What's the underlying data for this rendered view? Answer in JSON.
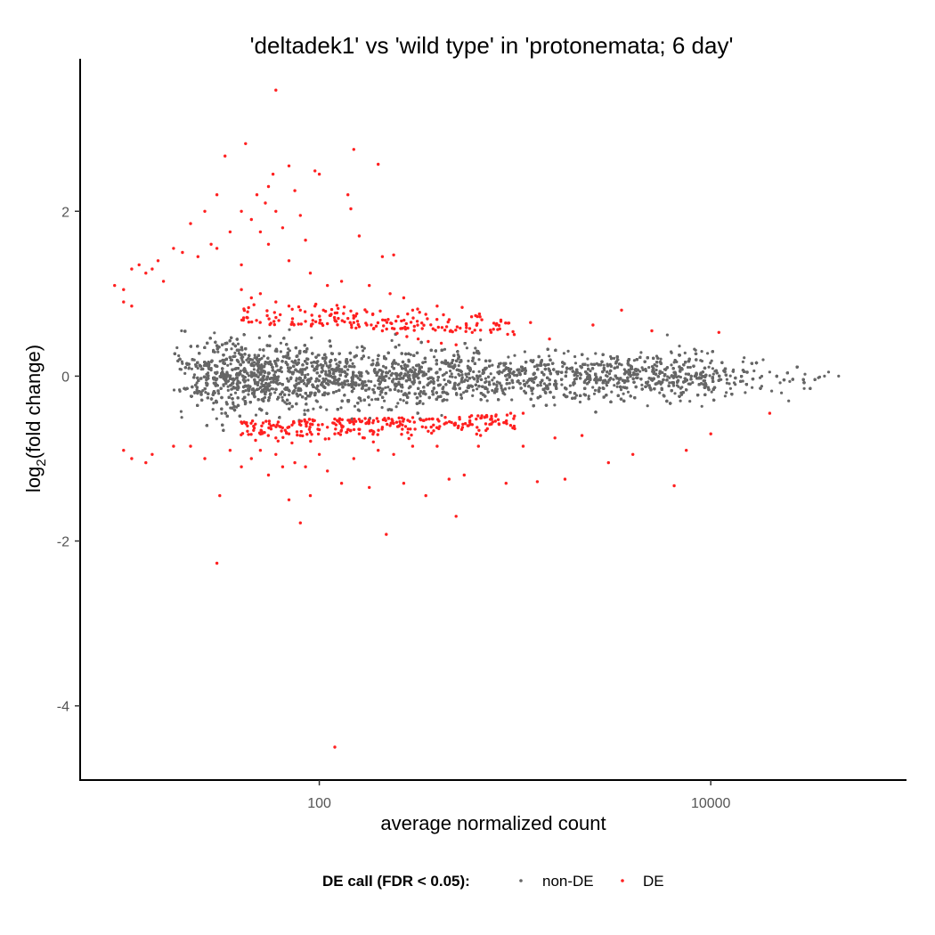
{
  "chart_data": {
    "type": "scatter",
    "title": "'deltadek1' vs 'wild type' in 'protonemata; 6 day'",
    "xlabel": "average normalized count",
    "ylabel_main": "log",
    "ylabel_sub": "2",
    "ylabel_rest": "(fold change)",
    "x_scale": "log10",
    "xlim": [
      6,
      100000
    ],
    "ylim": [
      -4.9,
      3.85
    ],
    "x_ticks": [
      {
        "value": 100,
        "label": "100"
      },
      {
        "value": 10000,
        "label": "10000"
      }
    ],
    "y_ticks": [
      {
        "value": 2,
        "label": "2"
      },
      {
        "value": 0,
        "label": "0"
      },
      {
        "value": -2,
        "label": "-2"
      },
      {
        "value": -4,
        "label": "-4"
      }
    ],
    "grid": false,
    "legend": {
      "title": "DE call (FDR < 0.05):",
      "position": "bottom",
      "entries": [
        "non-DE",
        "DE"
      ]
    },
    "colors": {
      "non_de": "#666666",
      "de": "#ff2020"
    },
    "series": [
      {
        "name": "non-DE",
        "description": "dense cloud of ~20000 genes centred on 0; band roughly ±0.7 at low counts narrowing to ±0.3 at high counts",
        "points": [
          [
            20000,
            0.05
          ],
          [
            25000,
            -0.3
          ],
          [
            30000,
            -0.15
          ],
          [
            40000,
            0.05
          ],
          [
            45000,
            0.0
          ],
          [
            9000,
            0.3
          ],
          [
            12000,
            -0.2
          ],
          [
            15000,
            -0.2
          ],
          [
            6000,
            0.5
          ],
          [
            7000,
            -0.3
          ]
        ]
      },
      {
        "name": "DE",
        "points": [
          [
            60,
            3.47
          ],
          [
            42,
            2.82
          ],
          [
            33,
            2.67
          ],
          [
            70,
            2.55
          ],
          [
            150,
            2.75
          ],
          [
            200,
            2.57
          ],
          [
            95,
            2.49
          ],
          [
            100,
            2.45
          ],
          [
            140,
            2.2
          ],
          [
            145,
            2.03
          ],
          [
            58,
            2.45
          ],
          [
            55,
            2.3
          ],
          [
            48,
            2.2
          ],
          [
            53,
            2.1
          ],
          [
            30,
            2.2
          ],
          [
            26,
            2.0
          ],
          [
            22,
            1.85
          ],
          [
            40,
            2.0
          ],
          [
            45,
            1.9
          ],
          [
            60,
            2.0
          ],
          [
            75,
            2.25
          ],
          [
            80,
            1.95
          ],
          [
            35,
            1.75
          ],
          [
            50,
            1.75
          ],
          [
            65,
            1.8
          ],
          [
            85,
            1.65
          ],
          [
            160,
            1.7
          ],
          [
            210,
            1.45
          ],
          [
            240,
            1.47
          ],
          [
            28,
            1.6
          ],
          [
            20,
            1.5
          ],
          [
            18,
            1.55
          ],
          [
            15,
            1.4
          ],
          [
            14,
            1.3
          ],
          [
            13,
            1.25
          ],
          [
            12,
            1.35
          ],
          [
            11,
            1.3
          ],
          [
            10,
            1.05
          ],
          [
            9,
            1.1
          ],
          [
            10,
            0.9
          ],
          [
            11,
            0.85
          ],
          [
            16,
            1.15
          ],
          [
            24,
            1.45
          ],
          [
            30,
            1.55
          ],
          [
            40,
            1.35
          ],
          [
            55,
            1.6
          ],
          [
            70,
            1.4
          ],
          [
            90,
            1.25
          ],
          [
            110,
            1.1
          ],
          [
            130,
            1.15
          ],
          [
            180,
            1.1
          ],
          [
            230,
            1.0
          ],
          [
            270,
            0.95
          ],
          [
            300,
            0.8
          ],
          [
            350,
            0.75
          ],
          [
            400,
            0.85
          ],
          [
            600,
            0.72
          ],
          [
            800,
            0.62
          ],
          [
            1200,
            0.65
          ],
          [
            2500,
            0.62
          ],
          [
            3500,
            0.8
          ],
          [
            5000,
            0.55
          ],
          [
            11000,
            0.53
          ],
          [
            1500,
            0.45
          ],
          [
            40,
            1.05
          ],
          [
            45,
            0.95
          ],
          [
            50,
            1.0
          ],
          [
            60,
            0.9
          ],
          [
            70,
            0.85
          ],
          [
            80,
            0.8
          ],
          [
            95,
            0.85
          ],
          [
            105,
            0.8
          ],
          [
            115,
            0.75
          ],
          [
            125,
            0.7
          ],
          [
            140,
            0.7
          ],
          [
            150,
            0.65
          ],
          [
            160,
            0.6
          ],
          [
            175,
            0.62
          ],
          [
            190,
            0.58
          ],
          [
            210,
            0.55
          ],
          [
            250,
            0.52
          ],
          [
            280,
            0.48
          ],
          [
            320,
            0.45
          ],
          [
            360,
            0.42
          ],
          [
            420,
            0.4
          ],
          [
            500,
            0.38
          ],
          [
            120,
            -4.5
          ],
          [
            30,
            -2.27
          ],
          [
            80,
            -1.78
          ],
          [
            220,
            -1.92
          ],
          [
            500,
            -1.7
          ],
          [
            31,
            -1.45
          ],
          [
            70,
            -1.5
          ],
          [
            90,
            -1.45
          ],
          [
            130,
            -1.3
          ],
          [
            180,
            -1.35
          ],
          [
            270,
            -1.3
          ],
          [
            350,
            -1.45
          ],
          [
            460,
            -1.25
          ],
          [
            550,
            -1.2
          ],
          [
            900,
            -1.3
          ],
          [
            1300,
            -1.28
          ],
          [
            1800,
            -1.25
          ],
          [
            3000,
            -1.05
          ],
          [
            4000,
            -0.95
          ],
          [
            6500,
            -1.33
          ],
          [
            7500,
            -0.9
          ],
          [
            20000,
            -0.45
          ],
          [
            10000,
            -0.7
          ],
          [
            10,
            -0.9
          ],
          [
            11,
            -1.0
          ],
          [
            13,
            -1.05
          ],
          [
            14,
            -0.95
          ],
          [
            18,
            -0.85
          ],
          [
            22,
            -0.85
          ],
          [
            26,
            -1.0
          ],
          [
            35,
            -0.9
          ],
          [
            40,
            -1.1
          ],
          [
            45,
            -1.0
          ],
          [
            50,
            -0.9
          ],
          [
            55,
            -1.2
          ],
          [
            60,
            -0.95
          ],
          [
            65,
            -1.1
          ],
          [
            75,
            -1.05
          ],
          [
            85,
            -1.1
          ],
          [
            100,
            -0.95
          ],
          [
            110,
            -1.15
          ],
          [
            150,
            -1.0
          ],
          [
            200,
            -0.9
          ],
          [
            240,
            -0.95
          ],
          [
            300,
            -0.85
          ],
          [
            400,
            -0.85
          ],
          [
            650,
            -0.85
          ],
          [
            1100,
            -0.85
          ],
          [
            1600,
            -0.75
          ],
          [
            2200,
            -0.72
          ],
          [
            120,
            -0.7
          ],
          [
            140,
            -0.65
          ],
          [
            160,
            -0.7
          ],
          [
            170,
            -0.75
          ],
          [
            190,
            -0.68
          ],
          [
            210,
            -0.62
          ],
          [
            230,
            -0.6
          ],
          [
            260,
            -0.58
          ],
          [
            290,
            -0.55
          ],
          [
            330,
            -0.53
          ],
          [
            380,
            -0.52
          ],
          [
            440,
            -0.5
          ],
          [
            520,
            -0.5
          ],
          [
            600,
            -0.48
          ],
          [
            700,
            -0.5
          ],
          [
            800,
            -0.47
          ],
          [
            950,
            -0.45
          ],
          [
            1100,
            -0.45
          ],
          [
            60,
            -0.75
          ],
          [
            70,
            -0.7
          ],
          [
            80,
            -0.72
          ],
          [
            90,
            -0.68
          ],
          [
            100,
            -0.65
          ],
          [
            110,
            -0.62
          ],
          [
            130,
            -0.6
          ],
          [
            150,
            -0.58
          ],
          [
            180,
            -0.56
          ],
          [
            200,
            -0.55
          ]
        ]
      }
    ]
  }
}
